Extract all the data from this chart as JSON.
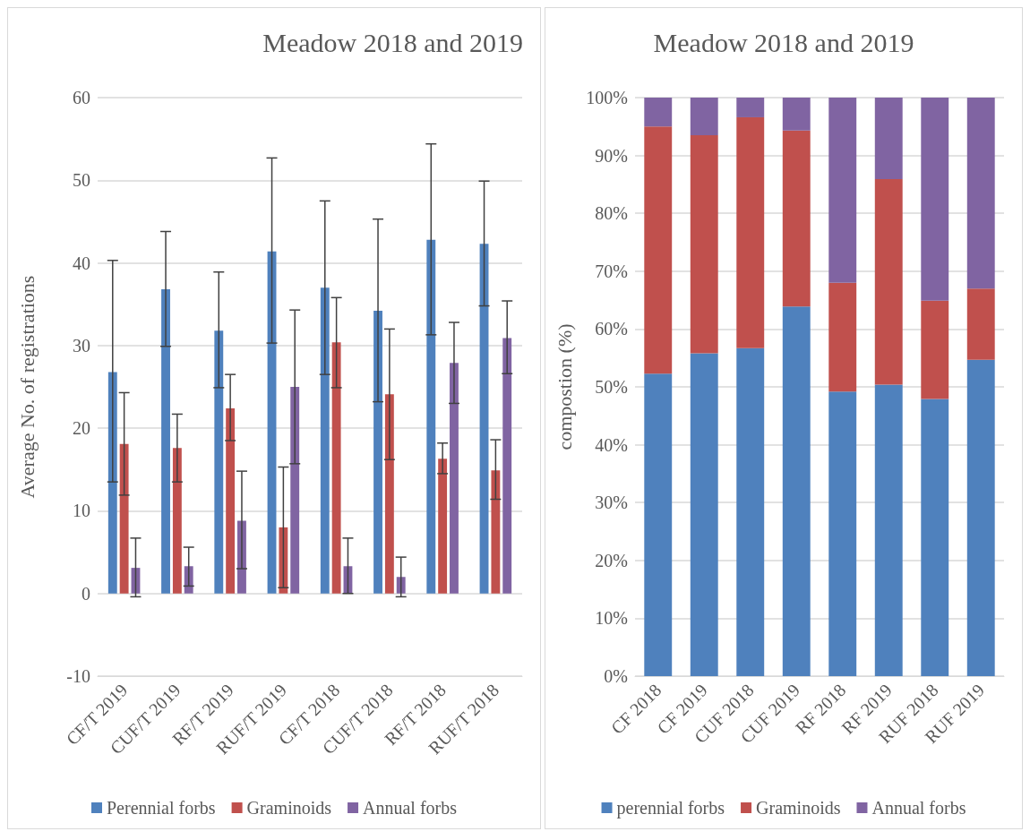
{
  "chart_data": [
    {
      "type": "bar",
      "title": "Meadow 2018 and 2019",
      "ylabel": "Average No. of registrations",
      "categories": [
        "CF/T 2019",
        "CUF/T 2019",
        "RF/T 2019",
        "RUF/T 2019",
        "CF/T 2018",
        "CUF/T 2018",
        "RF/T 2018",
        "RUF/T 2018"
      ],
      "series": [
        {
          "name": "Perennial forbs",
          "color": "#4f81bd",
          "values": [
            26.8,
            36.8,
            31.8,
            41.4,
            37.0,
            34.2,
            42.8,
            42.3
          ],
          "errors": [
            [
              13.5,
              40.3
            ],
            [
              29.9,
              43.8
            ],
            [
              24.9,
              38.9
            ],
            [
              30.3,
              52.7
            ],
            [
              26.5,
              47.5
            ],
            [
              23.2,
              45.3
            ],
            [
              31.3,
              54.4
            ],
            [
              34.8,
              49.9
            ]
          ]
        },
        {
          "name": "Graminoids",
          "color": "#c0504d",
          "values": [
            18.1,
            17.6,
            22.4,
            8.0,
            30.4,
            24.1,
            16.3,
            14.9
          ],
          "errors": [
            [
              11.9,
              24.3
            ],
            [
              13.5,
              21.7
            ],
            [
              18.5,
              26.5
            ],
            [
              0.7,
              15.3
            ],
            [
              24.9,
              35.8
            ],
            [
              16.2,
              32.0
            ],
            [
              14.5,
              18.2
            ],
            [
              11.4,
              18.6
            ]
          ]
        },
        {
          "name": "Annual forbs",
          "color": "#8064a2",
          "values": [
            3.1,
            3.3,
            8.8,
            25.0,
            3.3,
            2.0,
            27.9,
            30.9
          ],
          "errors": [
            [
              -0.4,
              6.7
            ],
            [
              0.9,
              5.6
            ],
            [
              3.0,
              14.8
            ],
            [
              15.7,
              34.3
            ],
            [
              0,
              6.7
            ],
            [
              -0.4,
              4.4
            ],
            [
              23.0,
              32.8
            ],
            [
              26.6,
              35.4
            ]
          ]
        }
      ],
      "ylim": [
        -10,
        60
      ],
      "yticks": [
        -10,
        0,
        10,
        20,
        30,
        40,
        50,
        60
      ],
      "grid": "y",
      "legend": "bottom"
    },
    {
      "type": "bar",
      "title": "Meadow 2018 and 2019",
      "ylabel": "compostion (%)",
      "stacked": true,
      "categories": [
        "CF 2018",
        "CF 2019",
        "CUF 2018",
        "CUF 2019",
        "RF 2018",
        "RF 2019",
        "RUF 2018",
        "RUF 2019"
      ],
      "series": [
        {
          "name": "perennial forbs",
          "color": "#4f81bd",
          "values": [
            52.3,
            55.8,
            56.7,
            63.9,
            49.2,
            50.4,
            47.9,
            54.7
          ]
        },
        {
          "name": "Graminoids",
          "color": "#c0504d",
          "values": [
            42.7,
            37.7,
            39.9,
            30.4,
            18.8,
            35.5,
            17.0,
            12.3
          ]
        },
        {
          "name": "Annual forbs",
          "color": "#8064a2",
          "values": [
            5.0,
            6.5,
            3.4,
            5.7,
            32.0,
            14.1,
            35.1,
            33.0
          ]
        }
      ],
      "ylim": [
        0,
        100
      ],
      "yticks": [
        {
          "value": 0,
          "label": "0%"
        },
        {
          "value": 10,
          "label": "10%"
        },
        {
          "value": 20,
          "label": "20%"
        },
        {
          "value": 30,
          "label": "30%"
        },
        {
          "value": 40,
          "label": "40%"
        },
        {
          "value": 50,
          "label": "50%"
        },
        {
          "value": 60,
          "label": "60%"
        },
        {
          "value": 70,
          "label": "70%"
        },
        {
          "value": 80,
          "label": "80%"
        },
        {
          "value": 90,
          "label": "90%"
        },
        {
          "value": 100,
          "label": "100%"
        }
      ],
      "grid": "y",
      "legend": "bottom"
    }
  ]
}
